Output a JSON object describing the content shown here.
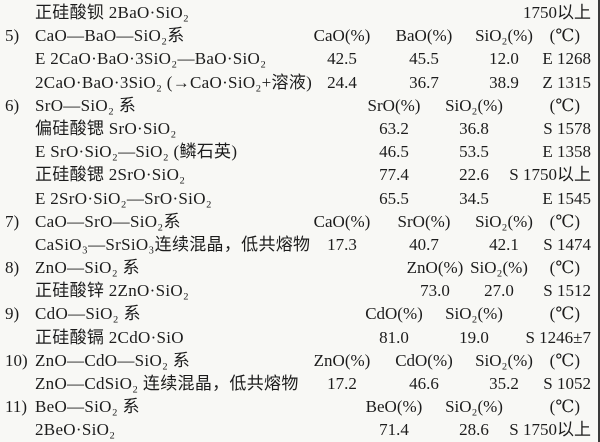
{
  "page": {
    "background": "#f8f8f5",
    "text_color": "#1c1c1c",
    "edge_line_color": "#3a3a3a"
  },
  "table": {
    "rows": [
      {
        "label": "正硅酸钡 2BaO·SiO₂",
        "temp": "1750以上"
      },
      {
        "num": "5)",
        "label": "CaO—BaO—SiO₂系",
        "cells": [
          "CaO(%)",
          "BaO(%)",
          "SiO₂(%)"
        ],
        "temp": "(℃)"
      },
      {
        "label": "E 2CaO·BaO·3SiO₂—BaO·SiO₂",
        "cells": [
          "42.5",
          "45.5",
          "12.0"
        ],
        "temp": "E 1268"
      },
      {
        "label": "2CaO·BaO·3SiO₂ (→CaO·SiO₂+溶液)",
        "cells": [
          "24.4",
          "36.7",
          "38.9"
        ],
        "temp": "Z 1315"
      },
      {
        "num": "6)",
        "label": "SrO—SiO₂ 系",
        "cells": [
          "SrO(%)",
          "SiO₂(%)"
        ],
        "temp": "(℃)"
      },
      {
        "label": "偏硅酸锶 SrO·SiO₂",
        "cells": [
          "63.2",
          "36.8"
        ],
        "temp": "S 1578"
      },
      {
        "label": "E SrO·SiO₂—SiO₂ (鳞石英)",
        "cells": [
          "46.5",
          "53.5"
        ],
        "temp": "E 1358"
      },
      {
        "label": "正硅酸锶 2SrO·SiO₂",
        "cells": [
          "77.4",
          "22.6"
        ],
        "temp": "S 1750以上"
      },
      {
        "label": "E 2SrO·SiO₂—SrO·SiO₂",
        "cells": [
          "65.5",
          "34.5"
        ],
        "temp": "E 1545"
      },
      {
        "num": "7)",
        "label": "CaO—SrO—SiO₂系",
        "cells": [
          "CaO(%)",
          "SrO(%)",
          "SiO₂(%)"
        ],
        "temp": "(℃)"
      },
      {
        "label": "CaSiO₃—SrSiO₃连续混晶，低共熔物",
        "cells": [
          "17.3",
          "40.7",
          "42.1"
        ],
        "temp": "S 1474"
      },
      {
        "num": "8)",
        "label": "ZnO—SiO₂ 系",
        "cells": [
          "ZnO(%)",
          "SiO₂(%)"
        ],
        "temp": "(℃)"
      },
      {
        "label": "正硅酸锌 2ZnO·SiO₂",
        "cells": [
          "73.0",
          "27.0"
        ],
        "temp": "S 1512"
      },
      {
        "num": "9)",
        "label": "CdO—SiO₂ 系",
        "cells": [
          "CdO(%)",
          "SiO₂(%)"
        ],
        "temp": "(℃)"
      },
      {
        "label": "正硅酸镉 2CdO·SiO",
        "cells": [
          "81.0",
          "19.0"
        ],
        "temp": "S 1246±7"
      },
      {
        "num": "10)",
        "label": "ZnO—CdO—SiO₂ 系",
        "cells": [
          "ZnO(%)",
          "CdO(%)",
          "SiO₂(%)"
        ],
        "temp": "(℃)"
      },
      {
        "label": "ZnO—CdSiO₂ 连续混晶，低共熔物",
        "cells": [
          "17.2",
          "46.6",
          "35.2"
        ],
        "temp": "S 1052"
      },
      {
        "num": "11)",
        "label": "BeO—SiO₂ 系",
        "cells": [
          "BeO(%)",
          "SiO₂(%)"
        ],
        "temp": "(℃)"
      },
      {
        "label": "2BeO·SiO₂",
        "cells": [
          "71.4",
          "28.6"
        ],
        "temp": "S 1750以上"
      }
    ]
  }
}
